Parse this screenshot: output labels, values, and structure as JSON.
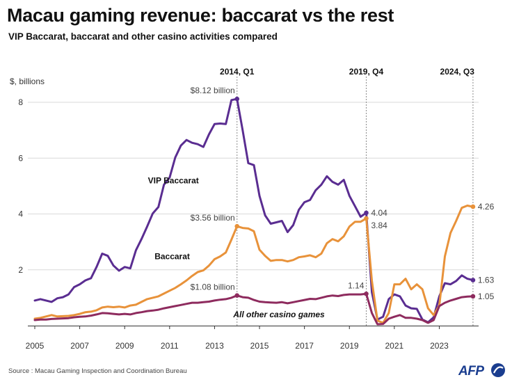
{
  "title": "Macau gaming revenue: baccarat vs the rest",
  "subtitle": "VIP Baccarat, baccarat and other casino activities compared",
  "source": "Source : Macau Gaming Inspection and Coordination Bureau",
  "logo_text": "AFP",
  "colors": {
    "vip": "#5a2d91",
    "baccarat": "#e8923a",
    "other": "#8e2b5e",
    "grid": "#d9d9d9",
    "axis": "#333333",
    "marker_line": "#8a8a8a"
  },
  "chart_data": {
    "type": "line",
    "title": "Macau gaming revenue: baccarat vs the rest",
    "subtitle": "VIP Baccarat, baccarat and other casino activities compared",
    "ylabel": "$, billions",
    "xlabel": "",
    "ylim": [
      0,
      8.5
    ],
    "xlim": [
      2005,
      2024.75
    ],
    "y_ticks": [
      2,
      4,
      6,
      8
    ],
    "x_ticks": [
      2005,
      2007,
      2009,
      2011,
      2013,
      2015,
      2017,
      2019,
      2021,
      2023
    ],
    "grid": true,
    "quarter_markers": [
      {
        "label": "2014, Q1",
        "x": 2014.0
      },
      {
        "label": "2019, Q4",
        "x": 2019.75
      },
      {
        "label": "2024, Q3",
        "x": 2024.5
      }
    ],
    "x": [
      2005.0,
      2005.25,
      2005.5,
      2005.75,
      2006.0,
      2006.25,
      2006.5,
      2006.75,
      2007.0,
      2007.25,
      2007.5,
      2007.75,
      2008.0,
      2008.25,
      2008.5,
      2008.75,
      2009.0,
      2009.25,
      2009.5,
      2009.75,
      2010.0,
      2010.25,
      2010.5,
      2010.75,
      2011.0,
      2011.25,
      2011.5,
      2011.75,
      2012.0,
      2012.25,
      2012.5,
      2012.75,
      2013.0,
      2013.25,
      2013.5,
      2013.75,
      2014.0,
      2014.25,
      2014.5,
      2014.75,
      2015.0,
      2015.25,
      2015.5,
      2015.75,
      2016.0,
      2016.25,
      2016.5,
      2016.75,
      2017.0,
      2017.25,
      2017.5,
      2017.75,
      2018.0,
      2018.25,
      2018.5,
      2018.75,
      2019.0,
      2019.25,
      2019.5,
      2019.75,
      2020.0,
      2020.25,
      2020.5,
      2020.75,
      2021.0,
      2021.25,
      2021.5,
      2021.75,
      2022.0,
      2022.25,
      2022.5,
      2022.75,
      2023.0,
      2023.25,
      2023.5,
      2023.75,
      2024.0,
      2024.25,
      2024.5
    ],
    "series": [
      {
        "name": "VIP Baccarat",
        "color_key": "vip",
        "values": [
          0.9,
          0.95,
          0.9,
          0.85,
          0.98,
          1.02,
          1.12,
          1.38,
          1.48,
          1.62,
          1.7,
          2.1,
          2.58,
          2.5,
          2.15,
          1.97,
          2.1,
          2.05,
          2.7,
          3.1,
          3.55,
          4.02,
          4.25,
          5.05,
          5.3,
          6.02,
          6.45,
          6.65,
          6.55,
          6.5,
          6.4,
          6.85,
          7.22,
          7.24,
          7.22,
          8.08,
          8.12,
          7.0,
          5.82,
          5.75,
          4.65,
          3.95,
          3.65,
          3.7,
          3.75,
          3.35,
          3.6,
          4.15,
          4.42,
          4.5,
          4.85,
          5.05,
          5.35,
          5.15,
          5.05,
          5.22,
          4.65,
          4.28,
          3.9,
          4.04,
          1.2,
          0.22,
          0.32,
          0.95,
          1.12,
          1.05,
          0.72,
          0.62,
          0.6,
          0.22,
          0.12,
          0.3,
          1.05,
          1.52,
          1.48,
          1.6,
          1.8,
          1.68,
          1.63
        ]
      },
      {
        "name": "Baccarat",
        "color_key": "baccarat",
        "values": [
          0.25,
          0.28,
          0.33,
          0.38,
          0.33,
          0.34,
          0.35,
          0.38,
          0.42,
          0.48,
          0.5,
          0.55,
          0.65,
          0.68,
          0.66,
          0.68,
          0.65,
          0.72,
          0.75,
          0.85,
          0.95,
          1.0,
          1.05,
          1.15,
          1.25,
          1.35,
          1.48,
          1.62,
          1.78,
          1.92,
          1.98,
          2.15,
          2.38,
          2.48,
          2.62,
          3.08,
          3.56,
          3.5,
          3.48,
          3.38,
          2.72,
          2.5,
          2.32,
          2.35,
          2.35,
          2.3,
          2.35,
          2.45,
          2.48,
          2.52,
          2.45,
          2.58,
          2.95,
          3.1,
          3.02,
          3.2,
          3.55,
          3.72,
          3.72,
          3.84,
          1.6,
          0.18,
          0.1,
          0.45,
          1.48,
          1.48,
          1.68,
          1.3,
          1.48,
          1.3,
          0.62,
          0.38,
          0.72,
          2.48,
          3.32,
          3.75,
          4.22,
          4.3,
          4.26
        ]
      },
      {
        "name": "All other casino games",
        "color_key": "other",
        "values": [
          0.2,
          0.22,
          0.22,
          0.24,
          0.25,
          0.26,
          0.27,
          0.3,
          0.32,
          0.33,
          0.36,
          0.4,
          0.45,
          0.44,
          0.42,
          0.4,
          0.42,
          0.4,
          0.45,
          0.48,
          0.52,
          0.54,
          0.57,
          0.62,
          0.66,
          0.7,
          0.74,
          0.78,
          0.82,
          0.82,
          0.84,
          0.86,
          0.9,
          0.93,
          0.95,
          1.0,
          1.08,
          1.02,
          1.0,
          0.92,
          0.86,
          0.84,
          0.83,
          0.82,
          0.84,
          0.8,
          0.84,
          0.88,
          0.92,
          0.96,
          0.95,
          1.0,
          1.05,
          1.08,
          1.06,
          1.1,
          1.12,
          1.12,
          1.12,
          1.14,
          0.45,
          0.05,
          0.06,
          0.25,
          0.32,
          0.38,
          0.28,
          0.28,
          0.25,
          0.2,
          0.1,
          0.2,
          0.7,
          0.82,
          0.9,
          0.96,
          1.02,
          1.04,
          1.05
        ]
      }
    ],
    "series_labels": [
      {
        "series": "VIP Baccarat",
        "text": "VIP Baccarat",
        "x": 2012.3,
        "y": 5.2,
        "anchor": "end",
        "bold": true,
        "italic": false
      },
      {
        "series": "Baccarat",
        "text": "Baccarat",
        "x": 2011.9,
        "y": 2.48,
        "anchor": "end",
        "bold": true,
        "italic": false
      },
      {
        "series": "All other casino games",
        "text": "All other casino games",
        "x": 2017.9,
        "y": 0.4,
        "anchor": "end",
        "bold": true,
        "italic": true
      }
    ],
    "annotations": [
      {
        "text": "$8.12 billion",
        "x": 2014.0,
        "y": 8.12,
        "placement": "left-above"
      },
      {
        "text": "$3.56 billion",
        "x": 2014.0,
        "y": 3.56,
        "placement": "left-above"
      },
      {
        "text": "$1.08 billion",
        "x": 2014.0,
        "y": 1.08,
        "placement": "left-above"
      },
      {
        "text": "4.04",
        "x": 2019.75,
        "y": 4.04,
        "placement": "right"
      },
      {
        "text": "3.84",
        "x": 2019.75,
        "y": 3.84,
        "placement": "right-below"
      },
      {
        "text": "1.14",
        "x": 2019.75,
        "y": 1.14,
        "placement": "left-above"
      },
      {
        "text": "4.26",
        "x": 2024.5,
        "y": 4.26,
        "placement": "right"
      },
      {
        "text": "1.63",
        "x": 2024.5,
        "y": 1.63,
        "placement": "right"
      },
      {
        "text": "1.05",
        "x": 2024.5,
        "y": 1.05,
        "placement": "right"
      }
    ]
  }
}
